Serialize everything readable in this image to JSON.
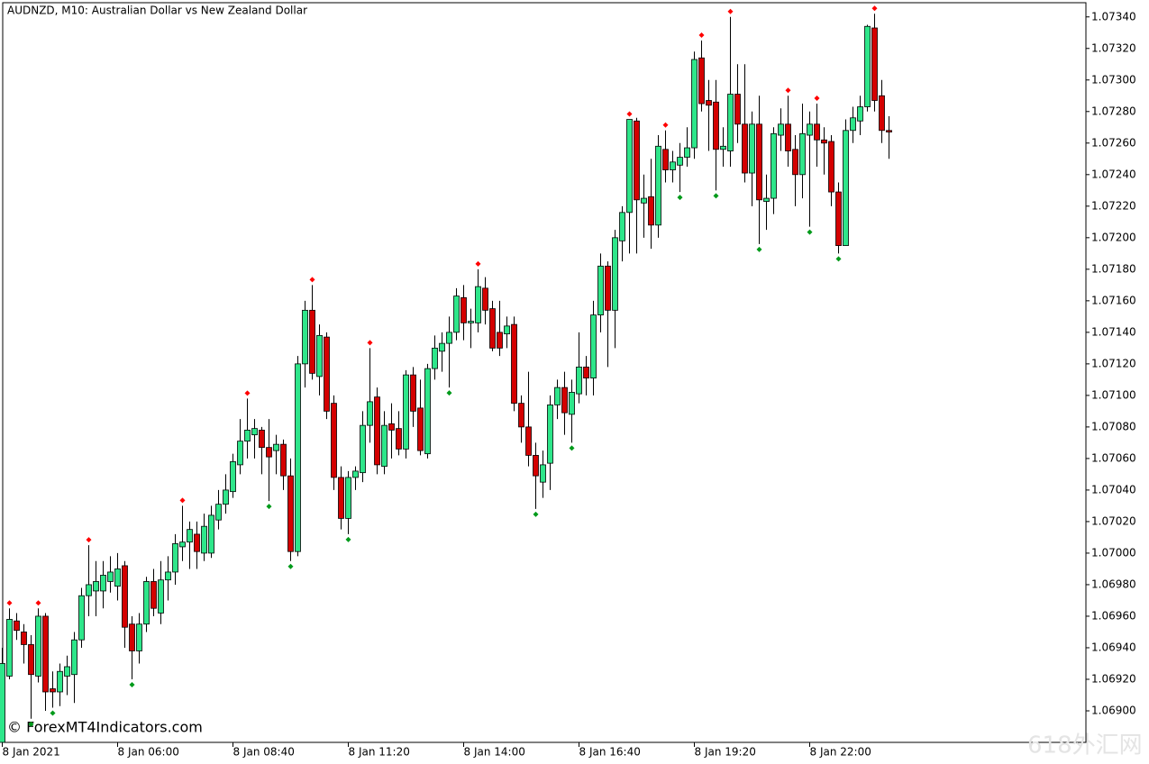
{
  "chart_data": {
    "type": "candlestick",
    "title": "AUDNZD, M10:  Australian Dollar vs New Zealand Dollar",
    "categories": [
      "8 Jan 2021",
      null,
      null,
      null,
      null,
      null,
      null,
      null,
      null,
      null,
      null,
      null,
      null,
      null,
      null,
      null,
      "8 Jan 06:00",
      null,
      null,
      null,
      null,
      null,
      null,
      null,
      null,
      null,
      null,
      null,
      null,
      null,
      null,
      null,
      "8 Jan 08:40",
      null,
      null,
      null,
      null,
      null,
      null,
      null,
      null,
      null,
      null,
      null,
      null,
      null,
      null,
      null,
      "8 Jan 11:20",
      null,
      null,
      null,
      null,
      null,
      null,
      null,
      null,
      null,
      null,
      null,
      null,
      null,
      null,
      null,
      "8 Jan 14:00",
      null,
      null,
      null,
      null,
      null,
      null,
      null,
      null,
      null,
      null,
      null,
      null,
      null,
      null,
      null,
      "8 Jan 16:40",
      null,
      null,
      null,
      null,
      null,
      null,
      null,
      null,
      null,
      null,
      null,
      null,
      null,
      null,
      null,
      "8 Jan 19:20",
      null,
      null,
      null,
      null,
      null,
      null,
      null,
      null,
      null,
      null,
      null,
      null,
      null,
      null,
      null,
      "8 Jan 22:00",
      null,
      null,
      null,
      null,
      null,
      null,
      null,
      null,
      null,
      null,
      null
    ],
    "open": [
      1.0688,
      1.06922,
      1.06957,
      1.0695,
      1.06942,
      1.06922,
      1.0696,
      1.06914,
      1.06912,
      1.06922,
      1.06923,
      1.06945,
      1.06973,
      1.06976,
      1.06976,
      1.06982,
      1.06979,
      1.06992,
      1.06955,
      1.06938,
      1.06955,
      1.06982,
      1.06962,
      1.06983,
      1.06988,
      1.07004,
      1.07007,
      1.07012,
      1.07,
      1.07,
      1.07021,
      1.07031,
      1.07039,
      1.07056,
      1.07071,
      1.07075,
      1.07078,
      1.07067,
      1.07065,
      1.07069,
      1.07049,
      1.07001,
      1.0712,
      1.07154,
      1.07112,
      1.07137,
      1.07095,
      1.07048,
      1.07022,
      1.07048,
      1.07051,
      1.07081,
      1.07099,
      1.07055,
      1.07082,
      1.07079,
      1.07066,
      1.07113,
      1.07092,
      1.07063,
      1.07117,
      1.07128,
      1.07133,
      1.0714,
      1.07162,
      1.07146,
      1.07146,
      1.07168,
      1.07155,
      1.0714,
      1.07139,
      1.07145,
      1.07095,
      1.0708,
      1.07062,
      1.07045,
      1.07057,
      1.07094,
      1.07105,
      1.07088,
      1.07101,
      1.07118,
      1.07111,
      1.07151,
      1.07182,
      1.07154,
      1.07198,
      1.07216,
      1.07274,
      1.07222,
      1.07226,
      1.07208,
      1.07256,
      1.07243,
      1.07246,
      1.07251,
      1.07257,
      1.07314,
      1.07287,
      1.07286,
      1.07256,
      1.07255,
      1.07291,
      1.07272,
      1.07241,
      1.07272,
      1.07223,
      1.07225,
      1.07265,
      1.07272,
      1.07256,
      1.0724,
      1.07265,
      1.07272,
      1.07262,
      1.07261,
      1.07229,
      1.07195,
      1.07268,
      1.07274,
      1.07283,
      1.07333,
      1.0729,
      1.07268
    ],
    "high": [
      1.0694,
      1.06965,
      1.06962,
      1.06955,
      1.06948,
      1.06965,
      1.06962,
      1.06925,
      1.0693,
      1.06935,
      1.0695,
      1.06978,
      1.07005,
      1.06995,
      1.06995,
      1.06998,
      1.07,
      1.06995,
      1.0696,
      1.06962,
      1.06985,
      1.0699,
      1.06995,
      1.06998,
      1.07012,
      1.0703,
      1.0702,
      1.0702,
      1.07025,
      1.0703,
      1.0704,
      1.0705,
      1.07063,
      1.07085,
      1.07098,
      1.07085,
      1.0708,
      1.07085,
      1.07075,
      1.07072,
      1.0706,
      1.07125,
      1.0716,
      1.0717,
      1.07145,
      1.0714,
      1.071,
      1.07055,
      1.07052,
      1.07055,
      1.0709,
      1.0713,
      1.07105,
      1.0709,
      1.07095,
      1.0709,
      1.07116,
      1.07118,
      1.0711,
      1.0712,
      1.07138,
      1.0714,
      1.0715,
      1.07168,
      1.0717,
      1.07155,
      1.0718,
      1.07175,
      1.0716,
      1.0716,
      1.0715,
      1.0715,
      1.071,
      1.07115,
      1.0707,
      1.07065,
      1.071,
      1.0711,
      1.07115,
      1.0711,
      1.0714,
      1.07125,
      1.0716,
      1.0719,
      1.07185,
      1.07205,
      1.0722,
      1.07275,
      1.07276,
      1.0724,
      1.0725,
      1.07265,
      1.07268,
      1.07255,
      1.0726,
      1.0727,
      1.07318,
      1.07325,
      1.073,
      1.073,
      1.0727,
      1.0734,
      1.0731,
      1.0731,
      1.0728,
      1.0729,
      1.0724,
      1.0727,
      1.07282,
      1.0729,
      1.07265,
      1.07285,
      1.0728,
      1.07285,
      1.0727,
      1.07265,
      1.07235,
      1.07275,
      1.07283,
      1.0729,
      1.07335,
      1.07342,
      1.073,
      1.07277
    ],
    "low": [
      1.0688,
      1.0692,
      1.06945,
      1.0693,
      1.06895,
      1.06918,
      1.069,
      1.06902,
      1.06903,
      1.0691,
      1.06905,
      1.0694,
      1.0696,
      1.0696,
      1.06965,
      1.06975,
      1.0697,
      1.0694,
      1.0692,
      1.0693,
      1.0695,
      1.0696,
      1.06955,
      1.0697,
      1.0698,
      1.06995,
      1.0699,
      1.0699,
      1.06995,
      1.06997,
      1.07015,
      1.07025,
      1.07035,
      1.0705,
      1.0706,
      1.0706,
      1.0705,
      1.07033,
      1.0705,
      1.0704,
      1.06995,
      1.06998,
      1.07105,
      1.0711,
      1.071,
      1.07085,
      1.0704,
      1.07015,
      1.07012,
      1.0704,
      1.07045,
      1.0707,
      1.0705,
      1.0705,
      1.0706,
      1.07062,
      1.0706,
      1.0708,
      1.07062,
      1.0706,
      1.0711,
      1.07115,
      1.07105,
      1.07135,
      1.07135,
      1.0713,
      1.0714,
      1.07145,
      1.07128,
      1.07125,
      1.0713,
      1.0709,
      1.0707,
      1.07055,
      1.07028,
      1.07035,
      1.0704,
      1.07085,
      1.07075,
      1.0707,
      1.07095,
      1.071,
      1.071,
      1.0714,
      1.07118,
      1.0713,
      1.07185,
      1.0719,
      1.0719,
      1.072,
      1.07193,
      1.072,
      1.07235,
      1.07235,
      1.07229,
      1.07245,
      1.0725,
      1.0728,
      1.07255,
      1.0723,
      1.07245,
      1.07245,
      1.0726,
      1.07235,
      1.0722,
      1.07196,
      1.07205,
      1.07215,
      1.07255,
      1.07245,
      1.0722,
      1.07225,
      1.07207,
      1.07245,
      1.0724,
      1.0722,
      1.0719,
      1.07195,
      1.0726,
      1.07265,
      1.0728,
      1.0728,
      1.0726,
      1.0725
    ],
    "close": [
      1.0693,
      1.06958,
      1.06951,
      1.06942,
      1.06923,
      1.0696,
      1.06912,
      1.06912,
      1.06925,
      1.06928,
      1.06945,
      1.06973,
      1.0698,
      1.06982,
      1.06986,
      1.06988,
      1.0699,
      1.06953,
      1.06938,
      1.06955,
      1.06982,
      1.06965,
      1.06983,
      1.06988,
      1.07006,
      1.07007,
      1.07015,
      1.07001,
      1.07017,
      1.07024,
      1.07031,
      1.0704,
      1.07058,
      1.07071,
      1.07078,
      1.07079,
      1.07067,
      1.07061,
      1.07069,
      1.07049,
      1.07001,
      1.0712,
      1.07154,
      1.07114,
      1.07138,
      1.0709,
      1.07048,
      1.07022,
      1.07048,
      1.07052,
      1.07081,
      1.07096,
      1.07056,
      1.07081,
      1.07078,
      1.07066,
      1.07113,
      1.0709,
      1.07065,
      1.07117,
      1.0713,
      1.07133,
      1.0714,
      1.07163,
      1.07146,
      1.07147,
      1.07169,
      1.07154,
      1.0713,
      1.0713,
      1.07144,
      1.07095,
      1.0708,
      1.07062,
      1.07049,
      1.07056,
      1.07094,
      1.07105,
      1.07089,
      1.07102,
      1.07118,
      1.07111,
      1.07151,
      1.07182,
      1.07154,
      1.072,
      1.07216,
      1.07275,
      1.07224,
      1.07225,
      1.07208,
      1.07258,
      1.07243,
      1.07248,
      1.07251,
      1.07257,
      1.07313,
      1.07285,
      1.07284,
      1.07256,
      1.07258,
      1.07291,
      1.07272,
      1.07241,
      1.07272,
      1.07224,
      1.07225,
      1.07266,
      1.07272,
      1.07255,
      1.0724,
      1.07266,
      1.07272,
      1.07262,
      1.0726,
      1.07229,
      1.07195,
      1.07268,
      1.07276,
      1.07283,
      1.07334,
      1.07287,
      1.07268,
      1.07267
    ],
    "fractal_up": [
      null,
      1.06965,
      null,
      null,
      null,
      1.06965,
      null,
      null,
      null,
      null,
      null,
      null,
      1.07005,
      null,
      null,
      null,
      null,
      null,
      null,
      null,
      null,
      null,
      null,
      null,
      null,
      1.0703,
      null,
      null,
      null,
      null,
      null,
      null,
      null,
      null,
      1.07098,
      null,
      null,
      null,
      null,
      null,
      null,
      null,
      null,
      1.0717,
      null,
      null,
      null,
      null,
      null,
      null,
      null,
      1.0713,
      null,
      null,
      null,
      null,
      null,
      null,
      null,
      null,
      null,
      null,
      null,
      null,
      null,
      null,
      1.0718,
      null,
      null,
      null,
      null,
      null,
      null,
      null,
      null,
      null,
      null,
      null,
      null,
      null,
      null,
      null,
      null,
      null,
      null,
      null,
      null,
      1.07275,
      null,
      null,
      null,
      null,
      1.07268,
      null,
      null,
      null,
      null,
      1.07325,
      null,
      null,
      null,
      1.0734,
      null,
      null,
      null,
      null,
      null,
      null,
      null,
      1.0729,
      null,
      null,
      null,
      1.07285,
      null,
      null,
      null,
      null,
      null,
      null,
      null,
      1.07342,
      null,
      null
    ],
    "fractal_down": [
      null,
      null,
      null,
      null,
      1.06895,
      null,
      null,
      1.06902,
      null,
      null,
      null,
      null,
      null,
      null,
      null,
      null,
      null,
      null,
      1.0692,
      null,
      null,
      null,
      null,
      null,
      null,
      null,
      null,
      null,
      null,
      null,
      null,
      null,
      null,
      null,
      null,
      null,
      null,
      1.07033,
      null,
      null,
      1.06995,
      null,
      null,
      null,
      null,
      null,
      null,
      null,
      1.07012,
      null,
      null,
      null,
      null,
      null,
      null,
      null,
      null,
      null,
      null,
      null,
      null,
      null,
      1.07105,
      null,
      null,
      null,
      null,
      null,
      null,
      null,
      null,
      null,
      null,
      null,
      1.07028,
      null,
      null,
      null,
      null,
      1.0707,
      null,
      null,
      null,
      null,
      null,
      null,
      null,
      null,
      null,
      null,
      null,
      null,
      null,
      null,
      1.07229,
      null,
      null,
      null,
      null,
      1.0723,
      null,
      null,
      null,
      null,
      null,
      1.07196,
      null,
      null,
      null,
      null,
      null,
      null,
      1.07207,
      null,
      null,
      null,
      1.0719,
      null,
      null,
      null,
      null,
      null,
      null,
      null
    ],
    "up_color": "#2ee68a",
    "down_color": "#d40000",
    "fractal_up_color": "#ff0000",
    "fractal_down_color": "#009a1a",
    "ylim": [
      1.0688,
      1.07349
    ],
    "yticks": [
      {
        "value": 1.069,
        "label": "1.06900"
      },
      {
        "value": 1.0692,
        "label": "1.06920"
      },
      {
        "value": 1.0694,
        "label": "1.06940"
      },
      {
        "value": 1.0696,
        "label": "1.06960"
      },
      {
        "value": 1.0698,
        "label": "1.06980"
      },
      {
        "value": 1.07,
        "label": "1.07000"
      },
      {
        "value": 1.0702,
        "label": "1.07020"
      },
      {
        "value": 1.0704,
        "label": "1.07040"
      },
      {
        "value": 1.0706,
        "label": "1.07060"
      },
      {
        "value": 1.0708,
        "label": "1.07080"
      },
      {
        "value": 1.071,
        "label": "1.07100"
      },
      {
        "value": 1.0712,
        "label": "1.07120"
      },
      {
        "value": 1.0714,
        "label": "1.07140"
      },
      {
        "value": 1.0716,
        "label": "1.07160"
      },
      {
        "value": 1.0718,
        "label": "1.07180"
      },
      {
        "value": 1.072,
        "label": "1.07200"
      },
      {
        "value": 1.0722,
        "label": "1.07220"
      },
      {
        "value": 1.0724,
        "label": "1.07240"
      },
      {
        "value": 1.0726,
        "label": "1.07260"
      },
      {
        "value": 1.0728,
        "label": "1.07280"
      },
      {
        "value": 1.073,
        "label": "1.07300"
      },
      {
        "value": 1.0732,
        "label": "1.07320"
      },
      {
        "value": 1.0734,
        "label": "1.07340"
      }
    ]
  },
  "watermark": "© ForexMT4Indicators.com",
  "site_mark": "618外汇网"
}
